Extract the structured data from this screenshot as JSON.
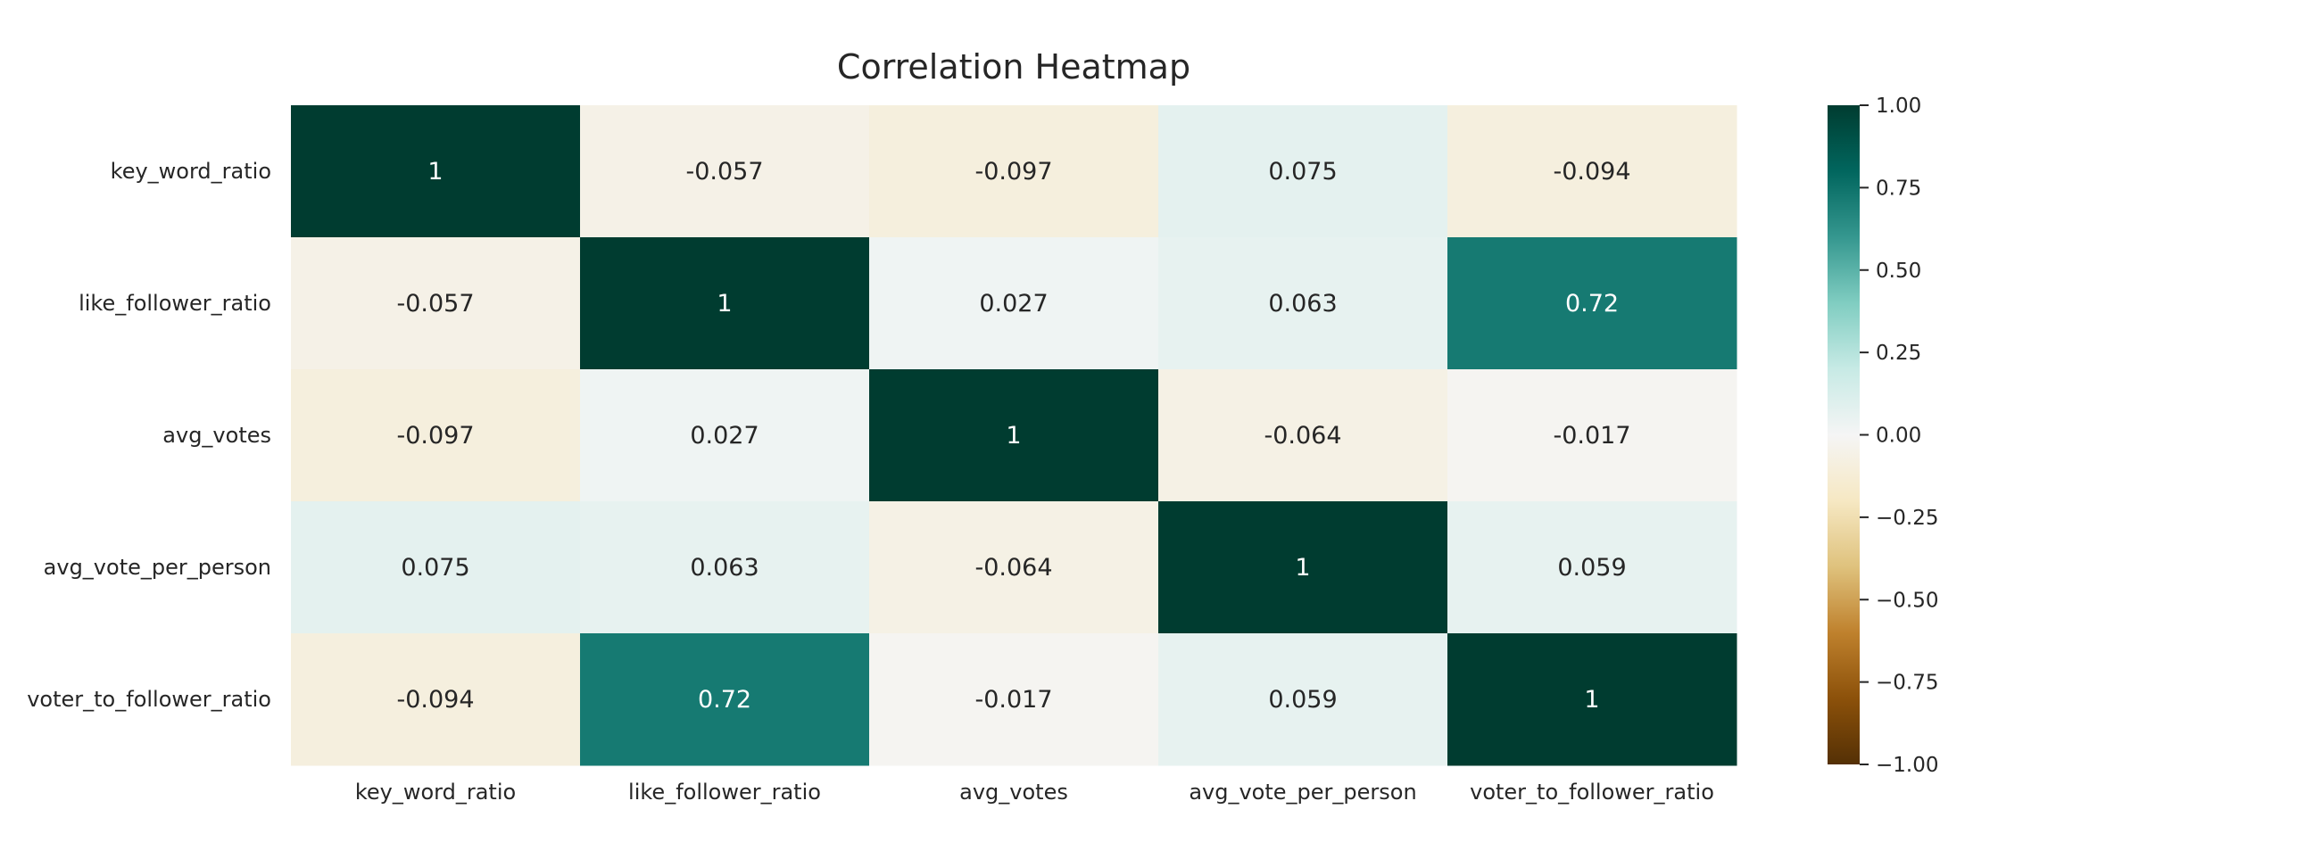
{
  "chart_data": {
    "type": "heatmap",
    "title": "Correlation Heatmap",
    "row_labels": [
      "key_word_ratio",
      "like_follower_ratio",
      "avg_votes",
      "avg_vote_per_person",
      "voter_to_follower_ratio"
    ],
    "col_labels": [
      "key_word_ratio",
      "like_follower_ratio",
      "avg_votes",
      "avg_vote_per_person",
      "voter_to_follower_ratio"
    ],
    "values": [
      [
        1,
        -0.057,
        -0.097,
        0.075,
        -0.094
      ],
      [
        -0.057,
        1,
        0.027,
        0.063,
        0.72
      ],
      [
        -0.097,
        0.027,
        1,
        -0.064,
        -0.017
      ],
      [
        0.075,
        0.063,
        -0.064,
        1,
        0.059
      ],
      [
        -0.094,
        0.72,
        -0.017,
        0.059,
        1
      ]
    ],
    "value_labels": [
      [
        "1",
        "-0.057",
        "-0.097",
        "0.075",
        "-0.094"
      ],
      [
        "-0.057",
        "1",
        "0.027",
        "0.063",
        "0.72"
      ],
      [
        "-0.097",
        "0.027",
        "1",
        "-0.064",
        "-0.017"
      ],
      [
        "0.075",
        "0.063",
        "-0.064",
        "1",
        "0.059"
      ],
      [
        "-0.094",
        "0.72",
        "-0.017",
        "0.059",
        "1"
      ]
    ],
    "colormap": "BrBG",
    "colormap_stops": [
      "#543005",
      "#8c510a",
      "#bf812d",
      "#dfc27d",
      "#f6e8c3",
      "#f5f5f5",
      "#c7eae5",
      "#80cdc1",
      "#35978f",
      "#01665e",
      "#003c30"
    ],
    "vmin": -1,
    "vmax": 1,
    "colorbar_ticks": [
      1.0,
      0.75,
      0.5,
      0.25,
      0.0,
      -0.25,
      -0.5,
      -0.75,
      -1.0
    ],
    "colorbar_tick_labels": [
      "1.00",
      "0.75",
      "0.50",
      "0.25",
      "0.00",
      "−0.25",
      "−0.50",
      "−0.75",
      "−1.00"
    ],
    "legend_placement": "right",
    "grid": false
  }
}
